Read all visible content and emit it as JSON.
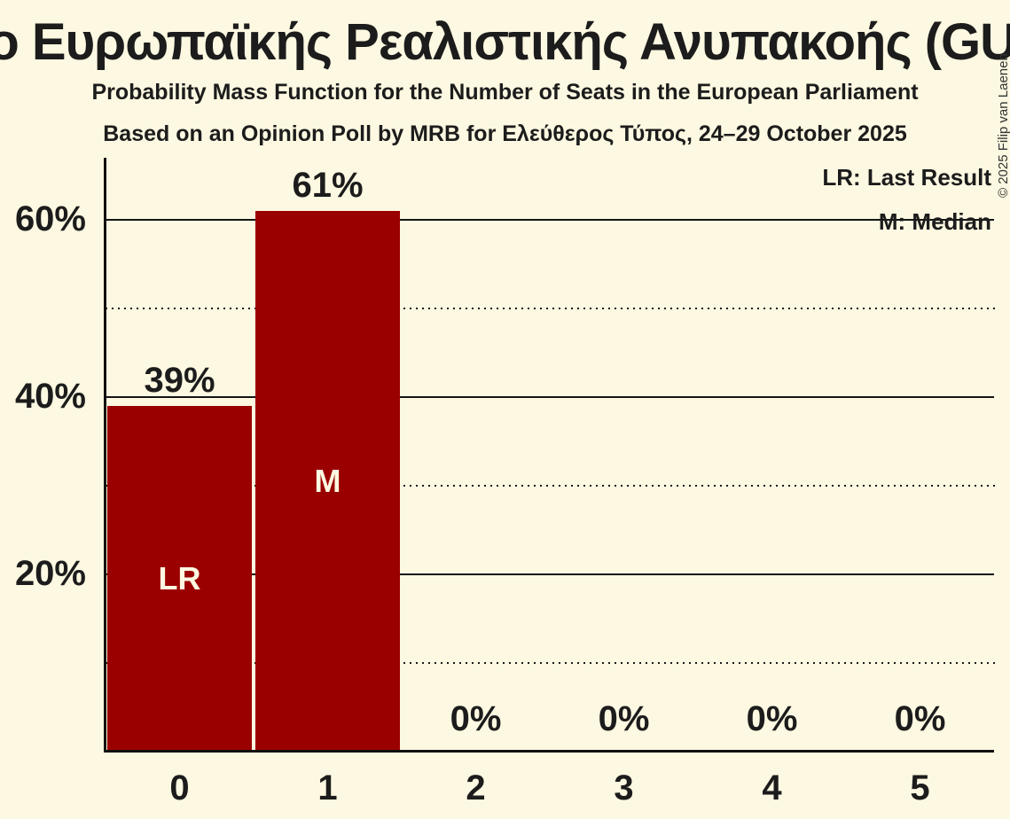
{
  "header": {
    "title": "Μέτωπο Ευρωπαϊκής Ρεαλιστικής Ανυπακοής (GUE/NGL)",
    "subtitle1": "Probability Mass Function for the Number of Seats in the European Parliament",
    "subtitle2": "Based on an Opinion Poll by MRB for Ελεύθερος Τύπος, 24–29 October 2025"
  },
  "copyright": "© 2025 Filip van Laenen",
  "legend": {
    "last_result": "LR: Last Result",
    "median": "M: Median"
  },
  "colors": {
    "background": "#FCF8E1",
    "bar": "#9B0000",
    "text": "#1C1C1C",
    "bar_label_text": "#FCF8E1"
  },
  "chart_data": {
    "type": "bar",
    "title": "Μέτωπο Ευρωπαϊκής Ρεαλιστικής Ανυπακοής (GUE/NGL)",
    "categories": [
      "0",
      "1",
      "2",
      "3",
      "4",
      "5"
    ],
    "values": [
      39,
      61,
      0,
      0,
      0,
      0
    ],
    "value_labels": [
      "39%",
      "61%",
      "0%",
      "0%",
      "0%",
      "0%"
    ],
    "bar_annotations": [
      {
        "index": 0,
        "label": "LR",
        "meaning": "Last Result"
      },
      {
        "index": 1,
        "label": "M",
        "meaning": "Median"
      }
    ],
    "xlabel": "",
    "ylabel": "",
    "ylim": [
      0,
      67
    ],
    "y_ticks": [
      {
        "pct": 20,
        "label": "20%"
      },
      {
        "pct": 40,
        "label": "40%"
      },
      {
        "pct": 60,
        "label": "60%"
      }
    ],
    "solid_gridlines": [
      20,
      40,
      60
    ],
    "dotted_gridlines": [
      10,
      30,
      50
    ],
    "grid": true,
    "legend_position": "top-right"
  }
}
